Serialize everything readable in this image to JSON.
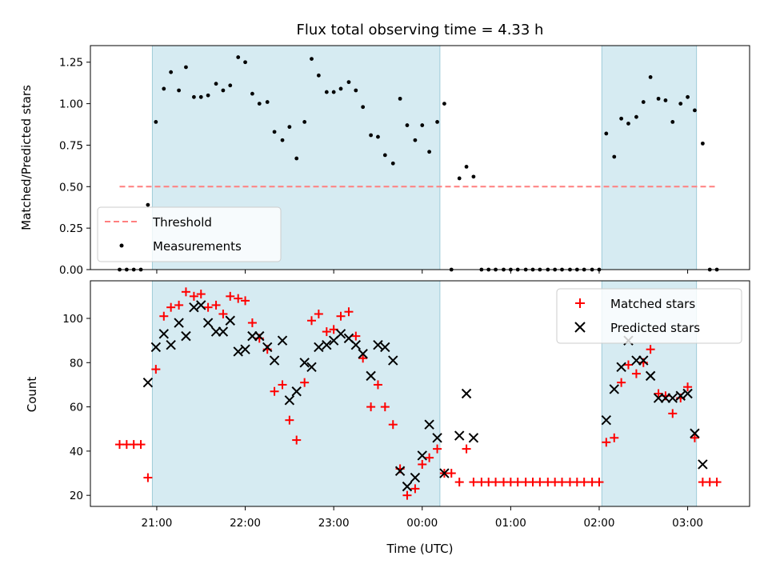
{
  "chart_data": [
    {
      "type": "scatter",
      "title": "Flux total observing time = 4.33 h",
      "xlabel": "",
      "ylabel": "Matched/Predicted stars",
      "x_unit": "hours UTC (24 = 00:00 next day)",
      "xlim": [
        20.25,
        27.7
      ],
      "ylim": [
        0.0,
        1.35
      ],
      "yticks": [
        "0.00",
        "0.25",
        "0.50",
        "0.75",
        "1.00",
        "1.25"
      ],
      "ytick_values": [
        0.0,
        0.25,
        0.5,
        0.75,
        1.0,
        1.25
      ],
      "observing_intervals": [
        [
          20.95,
          24.2
        ],
        [
          26.03,
          27.1
        ]
      ],
      "threshold": {
        "name": "Threshold",
        "value": 0.5,
        "x_range": [
          20.58,
          27.33
        ],
        "color": "#ff7f7f"
      },
      "series": [
        {
          "name": "Measurements",
          "marker": "dot",
          "color": "#000000",
          "points": [
            [
              20.58,
              0.0
            ],
            [
              20.66,
              0.0
            ],
            [
              20.74,
              0.0
            ],
            [
              20.82,
              0.0
            ],
            [
              20.9,
              0.39
            ],
            [
              20.99,
              0.89
            ],
            [
              21.08,
              1.09
            ],
            [
              21.16,
              1.19
            ],
            [
              21.25,
              1.08
            ],
            [
              21.33,
              1.22
            ],
            [
              21.42,
              1.04
            ],
            [
              21.5,
              1.04
            ],
            [
              21.58,
              1.05
            ],
            [
              21.67,
              1.12
            ],
            [
              21.75,
              1.08
            ],
            [
              21.83,
              1.11
            ],
            [
              21.92,
              1.28
            ],
            [
              22.0,
              1.25
            ],
            [
              22.08,
              1.06
            ],
            [
              22.16,
              1.0
            ],
            [
              22.25,
              1.01
            ],
            [
              22.33,
              0.83
            ],
            [
              22.42,
              0.78
            ],
            [
              22.5,
              0.86
            ],
            [
              22.58,
              0.67
            ],
            [
              22.67,
              0.89
            ],
            [
              22.75,
              1.27
            ],
            [
              22.83,
              1.17
            ],
            [
              22.92,
              1.07
            ],
            [
              23.0,
              1.07
            ],
            [
              23.08,
              1.09
            ],
            [
              23.17,
              1.13
            ],
            [
              23.25,
              1.08
            ],
            [
              23.33,
              0.98
            ],
            [
              23.42,
              0.81
            ],
            [
              23.5,
              0.8
            ],
            [
              23.58,
              0.69
            ],
            [
              23.67,
              0.64
            ],
            [
              23.75,
              1.03
            ],
            [
              23.83,
              0.87
            ],
            [
              23.92,
              0.78
            ],
            [
              24.0,
              0.87
            ],
            [
              24.08,
              0.71
            ],
            [
              24.17,
              0.89
            ],
            [
              24.25,
              1.0
            ],
            [
              24.33,
              0.0
            ],
            [
              24.42,
              0.55
            ],
            [
              24.5,
              0.62
            ],
            [
              24.58,
              0.56
            ],
            [
              24.67,
              0.0
            ],
            [
              24.75,
              0.0
            ],
            [
              24.83,
              0.0
            ],
            [
              24.92,
              0.0
            ],
            [
              25.0,
              0.0
            ],
            [
              25.08,
              0.0
            ],
            [
              25.17,
              0.0
            ],
            [
              25.25,
              0.0
            ],
            [
              25.33,
              0.0
            ],
            [
              25.42,
              0.0
            ],
            [
              25.5,
              0.0
            ],
            [
              25.58,
              0.0
            ],
            [
              25.67,
              0.0
            ],
            [
              25.75,
              0.0
            ],
            [
              25.83,
              0.0
            ],
            [
              25.92,
              0.0
            ],
            [
              26.0,
              0.0
            ],
            [
              26.08,
              0.82
            ],
            [
              26.17,
              0.68
            ],
            [
              26.25,
              0.91
            ],
            [
              26.33,
              0.88
            ],
            [
              26.42,
              0.92
            ],
            [
              26.5,
              1.01
            ],
            [
              26.58,
              1.16
            ],
            [
              26.67,
              1.03
            ],
            [
              26.75,
              1.02
            ],
            [
              26.83,
              0.89
            ],
            [
              26.92,
              1.0
            ],
            [
              27.0,
              1.04
            ],
            [
              27.08,
              0.96
            ],
            [
              27.17,
              0.76
            ],
            [
              27.25,
              0.0
            ],
            [
              27.33,
              0.0
            ]
          ]
        }
      ],
      "legend": {
        "placement": "lower-left",
        "entries": [
          "Threshold",
          "Measurements"
        ]
      }
    },
    {
      "type": "scatter",
      "title": "",
      "xlabel": "Time (UTC)",
      "ylabel": "Count",
      "x_unit": "hours UTC (24 = 00:00 next day)",
      "xlim": [
        20.25,
        27.7
      ],
      "ylim": [
        15,
        117
      ],
      "xticks": [
        "21:00",
        "22:00",
        "23:00",
        "00:00",
        "01:00",
        "02:00",
        "03:00"
      ],
      "xtick_values": [
        21,
        22,
        23,
        24,
        25,
        26,
        27
      ],
      "yticks": [
        "20",
        "40",
        "60",
        "80",
        "100"
      ],
      "ytick_values": [
        20,
        40,
        60,
        80,
        100
      ],
      "observing_intervals": [
        [
          20.95,
          24.2
        ],
        [
          26.03,
          27.1
        ]
      ],
      "series": [
        {
          "name": "Matched stars",
          "marker": "plus",
          "color": "#ff0000",
          "points": [
            [
              20.58,
              43
            ],
            [
              20.66,
              43
            ],
            [
              20.74,
              43
            ],
            [
              20.82,
              43
            ],
            [
              20.9,
              28
            ],
            [
              20.99,
              77
            ],
            [
              21.08,
              101
            ],
            [
              21.16,
              105
            ],
            [
              21.25,
              106
            ],
            [
              21.33,
              112
            ],
            [
              21.42,
              110
            ],
            [
              21.5,
              111
            ],
            [
              21.58,
              105
            ],
            [
              21.67,
              106
            ],
            [
              21.75,
              102
            ],
            [
              21.83,
              110
            ],
            [
              21.92,
              109
            ],
            [
              22.0,
              108
            ],
            [
              22.08,
              98
            ],
            [
              22.16,
              91
            ],
            [
              22.25,
              86
            ],
            [
              22.33,
              67
            ],
            [
              22.42,
              70
            ],
            [
              22.5,
              54
            ],
            [
              22.58,
              45
            ],
            [
              22.67,
              71
            ],
            [
              22.75,
              99
            ],
            [
              22.83,
              102
            ],
            [
              22.92,
              94
            ],
            [
              23.0,
              95
            ],
            [
              23.08,
              101
            ],
            [
              23.17,
              103
            ],
            [
              23.25,
              92
            ],
            [
              23.33,
              82
            ],
            [
              23.42,
              60
            ],
            [
              23.5,
              70
            ],
            [
              23.58,
              60
            ],
            [
              23.67,
              52
            ],
            [
              23.75,
              32
            ],
            [
              23.83,
              20
            ],
            [
              23.92,
              23
            ],
            [
              24.0,
              34
            ],
            [
              24.08,
              37
            ],
            [
              24.17,
              41
            ],
            [
              24.25,
              30
            ],
            [
              24.33,
              30
            ],
            [
              24.42,
              26
            ],
            [
              24.5,
              41
            ],
            [
              24.58,
              26
            ],
            [
              24.67,
              26
            ],
            [
              24.75,
              26
            ],
            [
              24.83,
              26
            ],
            [
              24.92,
              26
            ],
            [
              25.0,
              26
            ],
            [
              25.08,
              26
            ],
            [
              25.17,
              26
            ],
            [
              25.25,
              26
            ],
            [
              25.33,
              26
            ],
            [
              25.42,
              26
            ],
            [
              25.5,
              26
            ],
            [
              25.58,
              26
            ],
            [
              25.67,
              26
            ],
            [
              25.75,
              26
            ],
            [
              25.83,
              26
            ],
            [
              25.92,
              26
            ],
            [
              26.0,
              26
            ],
            [
              26.08,
              44
            ],
            [
              26.17,
              46
            ],
            [
              26.25,
              71
            ],
            [
              26.33,
              79
            ],
            [
              26.42,
              75
            ],
            [
              26.5,
              80
            ],
            [
              26.58,
              86
            ],
            [
              26.67,
              66
            ],
            [
              26.75,
              65
            ],
            [
              26.83,
              57
            ],
            [
              26.92,
              64
            ],
            [
              27.0,
              69
            ],
            [
              27.08,
              46
            ],
            [
              27.17,
              26
            ],
            [
              27.25,
              26
            ],
            [
              27.33,
              26
            ]
          ]
        },
        {
          "name": "Predicted stars",
          "marker": "x",
          "color": "#000000",
          "points": [
            [
              20.9,
              71
            ],
            [
              20.99,
              87
            ],
            [
              21.08,
              93
            ],
            [
              21.16,
              88
            ],
            [
              21.25,
              98
            ],
            [
              21.33,
              92
            ],
            [
              21.42,
              105
            ],
            [
              21.5,
              106
            ],
            [
              21.58,
              98
            ],
            [
              21.67,
              94
            ],
            [
              21.75,
              94
            ],
            [
              21.83,
              99
            ],
            [
              21.92,
              85
            ],
            [
              22.0,
              86
            ],
            [
              22.08,
              92
            ],
            [
              22.16,
              92
            ],
            [
              22.25,
              87
            ],
            [
              22.33,
              81
            ],
            [
              22.42,
              90
            ],
            [
              22.5,
              63
            ],
            [
              22.58,
              67
            ],
            [
              22.67,
              80
            ],
            [
              22.75,
              78
            ],
            [
              22.83,
              87
            ],
            [
              22.92,
              88
            ],
            [
              23.0,
              90
            ],
            [
              23.08,
              93
            ],
            [
              23.17,
              91
            ],
            [
              23.25,
              88
            ],
            [
              23.33,
              84
            ],
            [
              23.42,
              74
            ],
            [
              23.5,
              88
            ],
            [
              23.58,
              87
            ],
            [
              23.67,
              81
            ],
            [
              23.75,
              31
            ],
            [
              23.83,
              24
            ],
            [
              23.92,
              28
            ],
            [
              24.0,
              38
            ],
            [
              24.08,
              52
            ],
            [
              24.17,
              46
            ],
            [
              24.25,
              30
            ],
            [
              24.42,
              47
            ],
            [
              24.5,
              66
            ],
            [
              24.58,
              46
            ],
            [
              26.08,
              54
            ],
            [
              26.17,
              68
            ],
            [
              26.25,
              78
            ],
            [
              26.33,
              90
            ],
            [
              26.42,
              81
            ],
            [
              26.5,
              81
            ],
            [
              26.58,
              74
            ],
            [
              26.67,
              64
            ],
            [
              26.75,
              64
            ],
            [
              26.83,
              64
            ],
            [
              26.92,
              65
            ],
            [
              27.0,
              66
            ],
            [
              27.08,
              48
            ],
            [
              27.17,
              34
            ]
          ]
        }
      ],
      "legend": {
        "placement": "upper-right",
        "entries": [
          "Matched stars",
          "Predicted stars"
        ]
      }
    }
  ]
}
